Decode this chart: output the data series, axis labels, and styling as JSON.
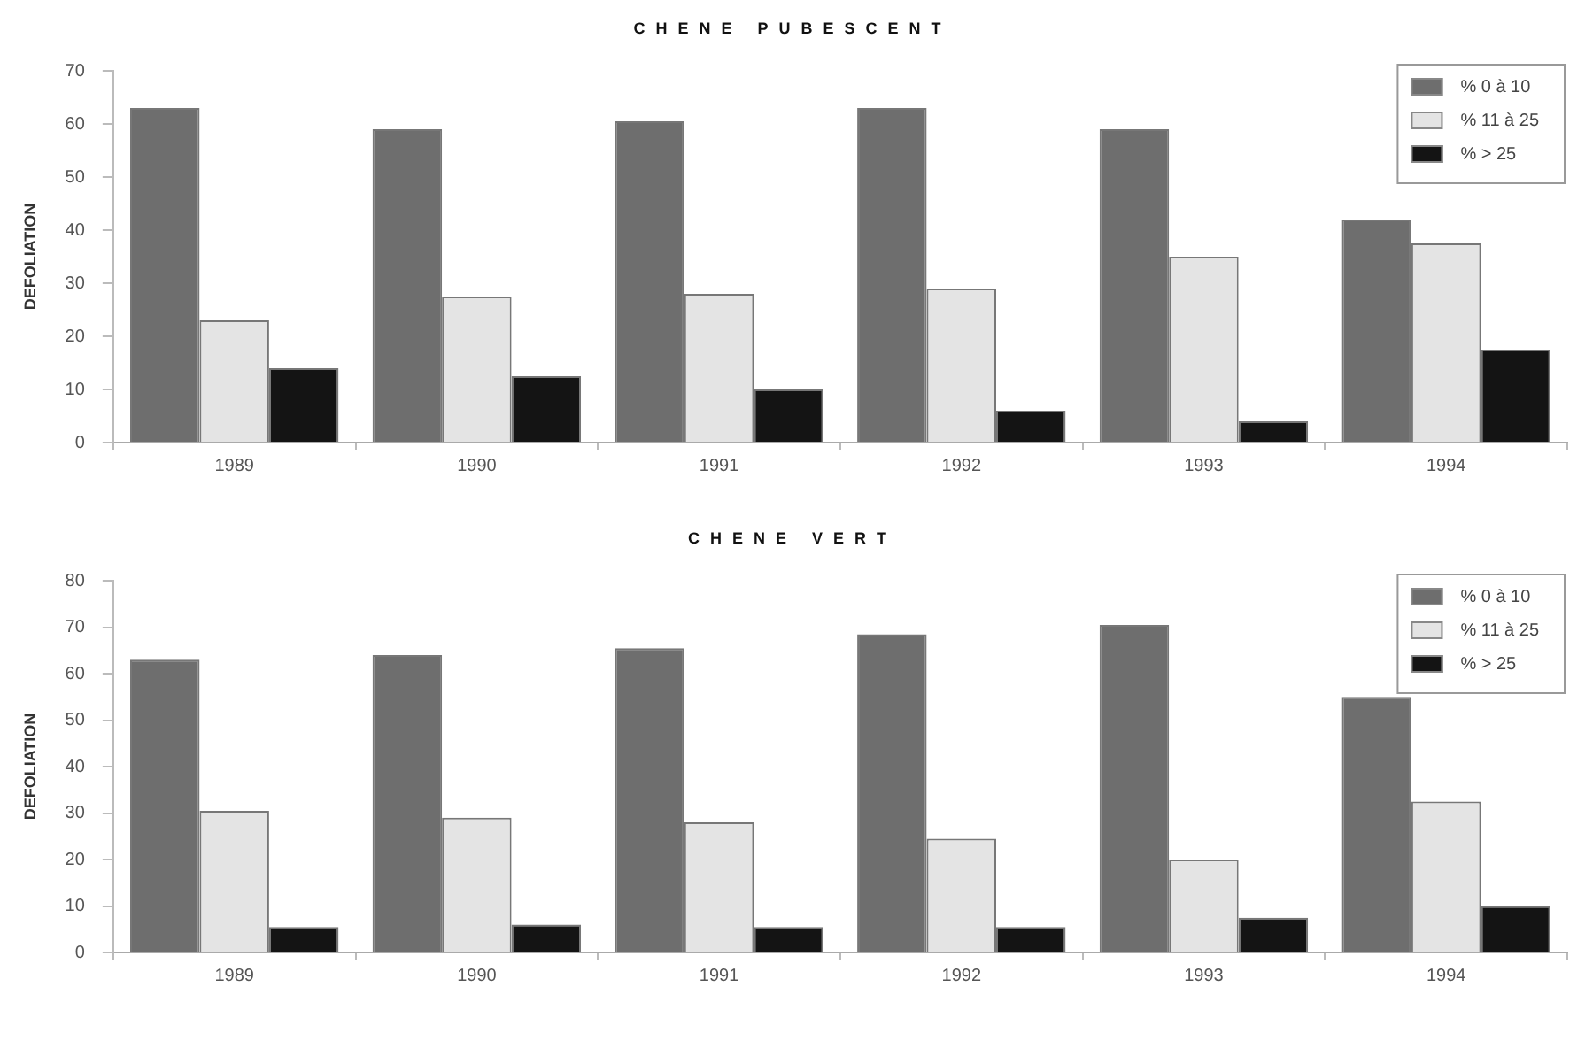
{
  "chart_data": [
    {
      "type": "bar",
      "title": "CHENE PUBESCENT",
      "ylabel": "DEFOLIATION",
      "categories": [
        "1989",
        "1990",
        "1991",
        "1992",
        "1993",
        "1994"
      ],
      "series": [
        {
          "name": "% 0 à 10",
          "color": "#6e6e6e",
          "values": [
            63,
            59,
            60.5,
            63,
            59,
            42
          ]
        },
        {
          "name": "% 11 à 25",
          "color": "#e4e4e4",
          "values": [
            23,
            27.5,
            28,
            29,
            35,
            37.5
          ]
        },
        {
          "name": "% > 25",
          "color": "#141414",
          "values": [
            14,
            12.5,
            10,
            6,
            4,
            17.5
          ]
        }
      ],
      "ylim": [
        0,
        70
      ],
      "yticks": [
        0,
        10,
        20,
        30,
        40,
        50,
        60,
        70
      ],
      "legend": "top right",
      "grid": false
    },
    {
      "type": "bar",
      "title": "CHENE VERT",
      "ylabel": "DEFOLIATION",
      "categories": [
        "1989",
        "1990",
        "1991",
        "1992",
        "1993",
        "1994"
      ],
      "series": [
        {
          "name": "% 0 à 10",
          "color": "#6e6e6e",
          "values": [
            63,
            64,
            65.5,
            68.5,
            70.5,
            55
          ]
        },
        {
          "name": "% 11 à 25",
          "color": "#e4e4e4",
          "values": [
            30.5,
            29,
            28,
            24.5,
            20,
            32.5
          ]
        },
        {
          "name": "% > 25",
          "color": "#141414",
          "values": [
            5.5,
            6,
            5.5,
            5.5,
            7.5,
            10
          ]
        }
      ],
      "ylim": [
        0,
        80
      ],
      "yticks": [
        0,
        10,
        20,
        30,
        40,
        50,
        60,
        70,
        80
      ],
      "legend": "top right",
      "grid": false
    }
  ]
}
